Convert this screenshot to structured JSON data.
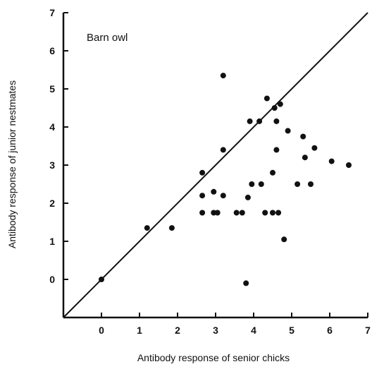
{
  "chart_data": {
    "type": "scatter",
    "title": "",
    "annotation": "Barn owl",
    "xlabel": "Antibody response of senior chicks",
    "ylabel": "Antibody response of junior nestmates",
    "xlim": [
      -1,
      7
    ],
    "ylim": [
      -1,
      7
    ],
    "x_ticks": [
      "0",
      "1",
      "2",
      "3",
      "4",
      "5",
      "6",
      "7"
    ],
    "y_ticks": [
      "0",
      "1",
      "2",
      "3",
      "4",
      "5",
      "6",
      "7"
    ],
    "grid": false,
    "legend": "none",
    "reference_line": {
      "x": [
        -1,
        7
      ],
      "y": [
        -1,
        7
      ]
    },
    "points": [
      {
        "x": 0.0,
        "y": 0.0
      },
      {
        "x": 1.2,
        "y": 1.35
      },
      {
        "x": 1.85,
        "y": 1.35
      },
      {
        "x": 2.65,
        "y": 2.8
      },
      {
        "x": 2.65,
        "y": 2.2
      },
      {
        "x": 2.65,
        "y": 1.75
      },
      {
        "x": 2.95,
        "y": 2.3
      },
      {
        "x": 2.95,
        "y": 1.75
      },
      {
        "x": 3.05,
        "y": 1.75
      },
      {
        "x": 3.2,
        "y": 5.35
      },
      {
        "x": 3.2,
        "y": 3.4
      },
      {
        "x": 3.2,
        "y": 2.2
      },
      {
        "x": 3.55,
        "y": 1.75
      },
      {
        "x": 3.7,
        "y": 1.75
      },
      {
        "x": 3.8,
        "y": -0.1
      },
      {
        "x": 3.85,
        "y": 2.15
      },
      {
        "x": 3.9,
        "y": 4.15
      },
      {
        "x": 3.95,
        "y": 2.5
      },
      {
        "x": 4.15,
        "y": 4.15
      },
      {
        "x": 4.2,
        "y": 2.5
      },
      {
        "x": 4.3,
        "y": 1.75
      },
      {
        "x": 4.35,
        "y": 4.75
      },
      {
        "x": 4.5,
        "y": 2.8
      },
      {
        "x": 4.5,
        "y": 1.75
      },
      {
        "x": 4.55,
        "y": 4.5
      },
      {
        "x": 4.6,
        "y": 4.15
      },
      {
        "x": 4.6,
        "y": 3.4
      },
      {
        "x": 4.65,
        "y": 1.75
      },
      {
        "x": 4.7,
        "y": 4.6
      },
      {
        "x": 4.8,
        "y": 1.05
      },
      {
        "x": 4.9,
        "y": 3.9
      },
      {
        "x": 5.15,
        "y": 2.5
      },
      {
        "x": 5.3,
        "y": 3.75
      },
      {
        "x": 5.35,
        "y": 3.2
      },
      {
        "x": 5.5,
        "y": 2.5
      },
      {
        "x": 5.6,
        "y": 3.45
      },
      {
        "x": 6.05,
        "y": 3.1
      },
      {
        "x": 6.5,
        "y": 3.0
      }
    ],
    "colors": {
      "marker": "#111111",
      "line": "#111111",
      "axis": "#111111"
    }
  }
}
